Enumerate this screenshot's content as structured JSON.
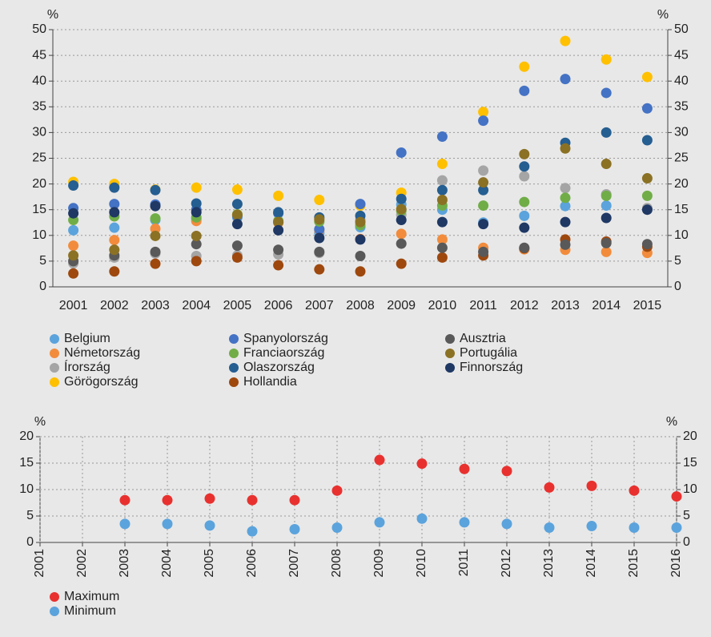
{
  "chart_data": [
    {
      "type": "scatter",
      "y_unit": "%",
      "y2_unit": "%",
      "categories": [
        "2001",
        "2002",
        "2003",
        "2004",
        "2005",
        "2006",
        "2007",
        "2008",
        "2009",
        "2010",
        "2011",
        "2012",
        "2013",
        "2014",
        "2015"
      ],
      "ylim": [
        0,
        50
      ],
      "yticks": [
        0,
        5,
        10,
        15,
        20,
        25,
        30,
        35,
        40,
        45,
        50
      ],
      "y2lim": [
        0,
        50
      ],
      "y2ticks": [
        0,
        5,
        10,
        15,
        20,
        25,
        30,
        35,
        40,
        45,
        50
      ],
      "grid": true,
      "legend": "bottom",
      "series": [
        {
          "name": "Belgium",
          "color": "#5ba3dc",
          "values": [
            11,
            11.5,
            13,
            13.2,
            13.5,
            12.5,
            10.5,
            11.6,
            16,
            15,
            12.5,
            13.8,
            15.7,
            15.8,
            15.1
          ]
        },
        {
          "name": "Németország",
          "color": "#f28c3c",
          "values": [
            8,
            9.1,
            11.3,
            12.8,
            13.9,
            12.5,
            11,
            9.3,
            10.3,
            9.2,
            7.6,
            7.3,
            7.2,
            6.8,
            6.6
          ]
        },
        {
          "name": "Írország",
          "color": "#a5a5a5",
          "values": [
            4.6,
            5.7,
            6.5,
            6,
            6.1,
            6.3,
            6.6,
            13,
            14,
            20.7,
            22.6,
            21.5,
            19.2,
            18,
            15.3
          ]
        },
        {
          "name": "Görögország",
          "color": "#ffc000",
          "values": [
            20.4,
            20,
            18.9,
            19.3,
            18.9,
            17.7,
            16.9,
            15.8,
            18.3,
            23.9,
            34,
            42.8,
            47.8,
            44.2,
            40.8
          ]
        },
        {
          "name": "Spanyolország",
          "color": "#4472c4",
          "values": [
            15.3,
            16.1,
            16,
            15,
            13.8,
            14.3,
            11.2,
            16.1,
            26.1,
            29.2,
            32.3,
            38.1,
            40.4,
            37.7,
            34.7
          ]
        },
        {
          "name": "Franciaország",
          "color": "#70ad47",
          "values": [
            13,
            13.7,
            13.3,
            13.5,
            14.1,
            12.8,
            12.7,
            12,
            14.8,
            15.8,
            15.8,
            16.5,
            17.3,
            17.7,
            17.7
          ]
        },
        {
          "name": "Olaszország",
          "color": "#255e91",
          "values": [
            19.7,
            19.3,
            18.8,
            16.2,
            16.1,
            14.5,
            13.5,
            13.8,
            17.1,
            18.8,
            18.8,
            23.4,
            28,
            30,
            28.5
          ]
        },
        {
          "name": "Hollandia",
          "color": "#9e480e",
          "values": [
            2.6,
            3,
            4.5,
            5,
            5.7,
            4.2,
            3.4,
            3,
            4.5,
            5.7,
            6.1,
            7.5,
            9.2,
            8.8,
            7.8
          ]
        },
        {
          "name": "Ausztria",
          "color": "#595959",
          "values": [
            5,
            6.1,
            6.8,
            8.3,
            8,
            7.2,
            6.8,
            6,
            8.4,
            7.6,
            6.8,
            7.6,
            8.2,
            8.5,
            8.3
          ]
        },
        {
          "name": "Portugália",
          "color": "#8b7124",
          "values": [
            6.1,
            7.2,
            9.9,
            9.9,
            14,
            12.6,
            13.1,
            12.6,
            15.1,
            16.9,
            20.3,
            25.8,
            26.9,
            23.9,
            21.1
          ]
        },
        {
          "name": "Finnország",
          "color": "#1f3864",
          "values": [
            14.3,
            14.5,
            15.7,
            14.5,
            12.2,
            11,
            9.5,
            9.2,
            13,
            12.6,
            12.2,
            11.5,
            12.6,
            13.4,
            15
          ]
        }
      ]
    },
    {
      "type": "scatter",
      "y_unit": "%",
      "y2_unit": "%",
      "x": [
        2001,
        2002,
        2003,
        2004,
        2005,
        2006,
        2007,
        2008,
        2009,
        2010,
        2011,
        2012,
        2013,
        2014,
        2015,
        2016
      ],
      "xlim": [
        2001,
        2016
      ],
      "xticks": [
        2001,
        2002,
        2003,
        2004,
        2005,
        2006,
        2007,
        2008,
        2009,
        2010,
        2011,
        2012,
        2013,
        2014,
        2015,
        2016
      ],
      "ylim": [
        0,
        20
      ],
      "yticks": [
        0,
        5,
        10,
        15,
        20
      ],
      "y2lim": [
        0,
        20
      ],
      "y2ticks": [
        0,
        5,
        10,
        15,
        20
      ],
      "grid": true,
      "xgrid": true,
      "legend": "bottom",
      "series": [
        {
          "name": "Maximum",
          "color": "#e8312f",
          "values": [
            null,
            null,
            8,
            8,
            8.3,
            8,
            8,
            9.8,
            15.6,
            14.9,
            13.9,
            13.5,
            10.4,
            10.7,
            9.8,
            8.7
          ]
        },
        {
          "name": "Minimum",
          "color": "#5ba3dc",
          "values": [
            null,
            null,
            3.5,
            3.5,
            3.2,
            2.1,
            2.5,
            2.8,
            3.8,
            4.5,
            3.8,
            3.5,
            2.8,
            3.1,
            2.8,
            2.8
          ]
        }
      ]
    }
  ]
}
